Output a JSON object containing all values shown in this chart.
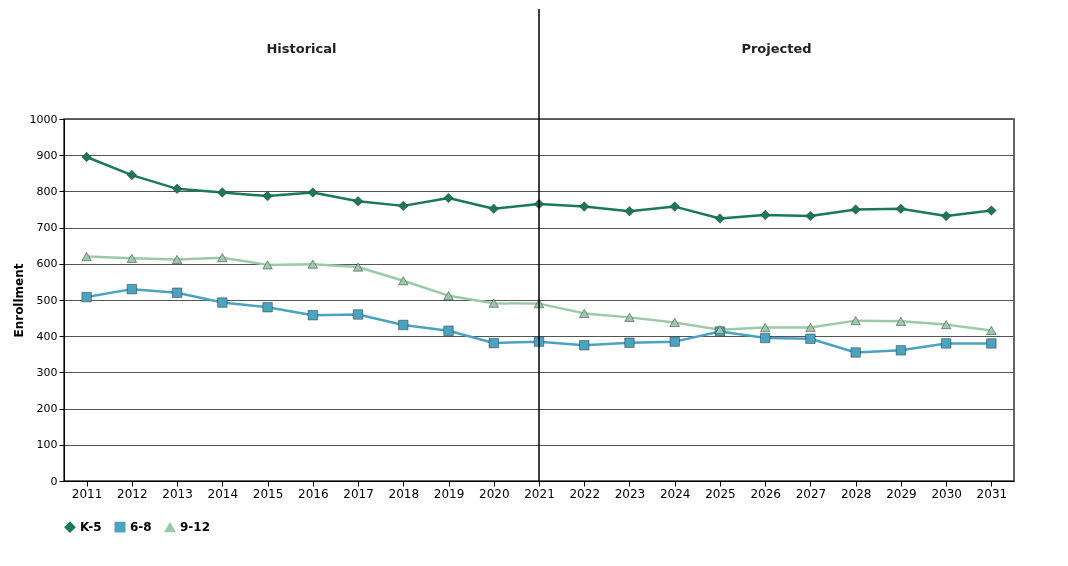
{
  "chart_data": {
    "type": "line",
    "ylabel": "Enrollment",
    "categories": [
      "2011",
      "2012",
      "2013",
      "2014",
      "2015",
      "2016",
      "2017",
      "2018",
      "2019",
      "2020",
      "2021",
      "2022",
      "2023",
      "2024",
      "2025",
      "2026",
      "2027",
      "2028",
      "2029",
      "2030",
      "2031"
    ],
    "series": [
      {
        "name": "K-5",
        "color": "#1a7a55",
        "marker": "diamond",
        "values": [
          895,
          845,
          807,
          797,
          787,
          797,
          773,
          760,
          782,
          752,
          765,
          758,
          745,
          758,
          725,
          735,
          732,
          750,
          752,
          732,
          747
        ]
      },
      {
        "name": "6-8",
        "color": "#4aa3c0",
        "marker": "square",
        "values": [
          508,
          530,
          520,
          493,
          480,
          458,
          460,
          431,
          415,
          381,
          385,
          375,
          382,
          385,
          413,
          395,
          393,
          355,
          361,
          380,
          380
        ]
      },
      {
        "name": "9-12",
        "color": "#9cc9a8",
        "marker": "triangle",
        "values": [
          620,
          615,
          612,
          617,
          597,
          599,
          591,
          553,
          512,
          491,
          490,
          463,
          452,
          438,
          418,
          424,
          424,
          443,
          441,
          432,
          416
        ]
      }
    ],
    "ylim": [
      0,
      1000
    ],
    "yticks": [
      0,
      100,
      200,
      300,
      400,
      500,
      600,
      700,
      800,
      900,
      1000
    ],
    "grid": "y",
    "legend": "bottom",
    "line_style": "solid",
    "ref_lines": [
      {
        "axis": "x",
        "value": "2021",
        "color": "#000000"
      }
    ],
    "annotations": [
      "Historical",
      "Projected"
    ]
  }
}
